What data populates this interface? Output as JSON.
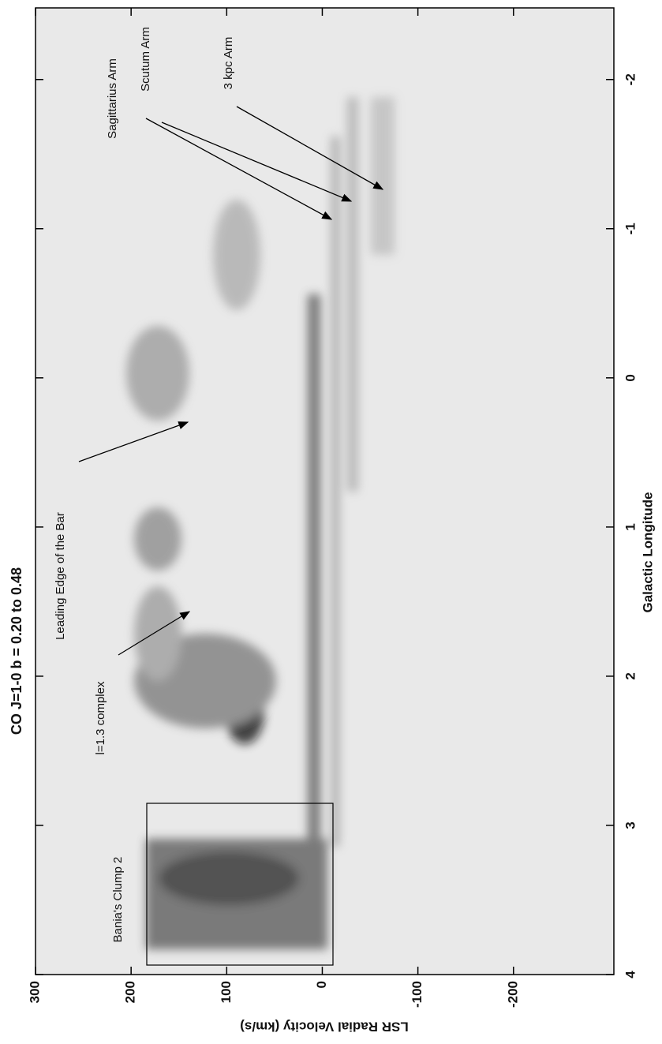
{
  "chart_data": {
    "type": "image",
    "title": "CO J=1-0   b = 0.20 to 0.48",
    "xlabel": "Galactic Longitude",
    "ylabel": "LSR Radial Velocity (km/s)",
    "xlim": [
      4,
      -2.48
    ],
    "xticks": [
      4,
      3,
      2,
      1,
      0,
      -1,
      -2
    ],
    "ylim": [
      300,
      -305
    ],
    "yticks": [
      300,
      200,
      100,
      0,
      -100,
      -200
    ],
    "annotations": [
      {
        "text": "Bania's Clump 2"
      },
      {
        "text": "l=1.3 complex"
      },
      {
        "text": "Leading Edge of the Bar"
      },
      {
        "text": "Sagittarius Arm"
      },
      {
        "text": "Scutum Arm"
      },
      {
        "text": "3 kpc Arm"
      }
    ]
  }
}
